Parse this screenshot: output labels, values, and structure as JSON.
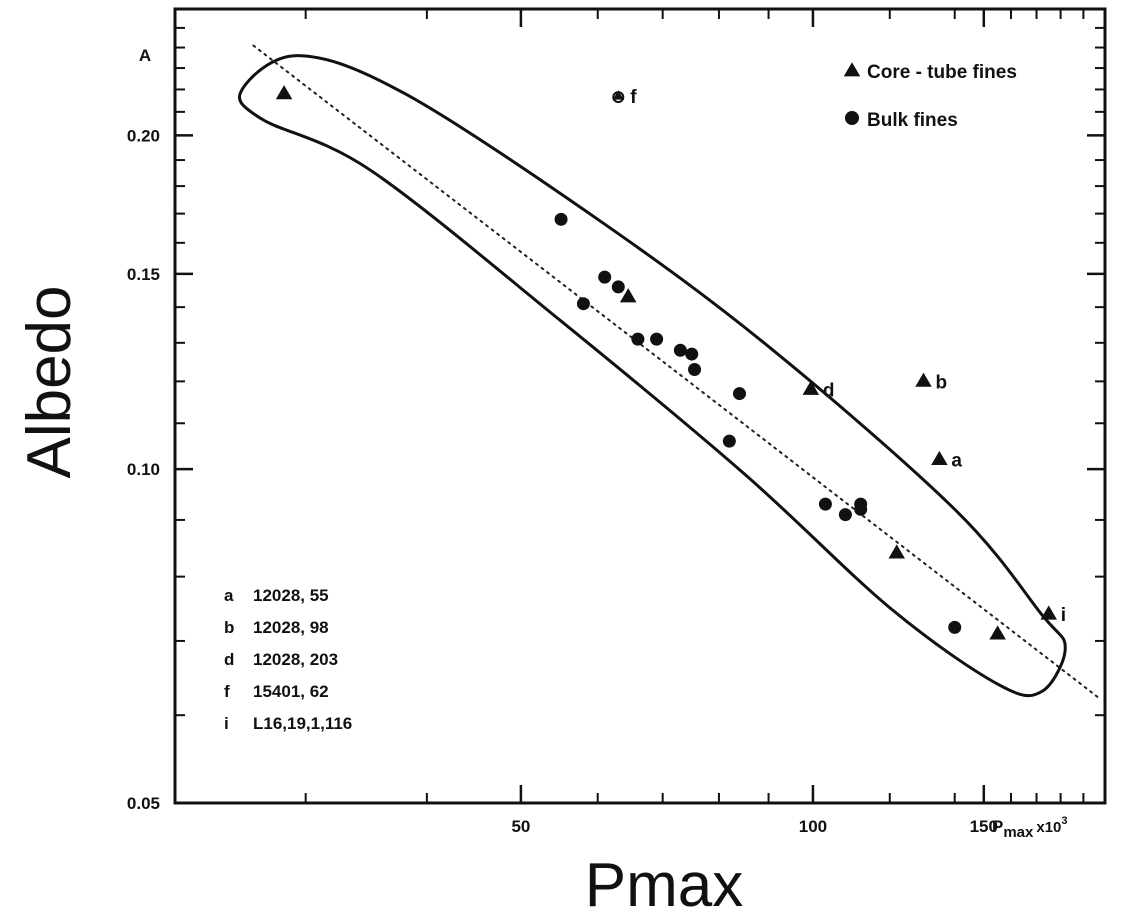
{
  "chart_data": {
    "type": "scatter",
    "title": "",
    "xlabel": "Pmax",
    "ylabel": "Albedo",
    "inner_y_axis_label": "A",
    "inner_x_axis_label_main": "P",
    "inner_x_axis_label_sub": "max",
    "inner_x_axis_label_suffix": "x10",
    "inner_x_axis_label_exp": "3",
    "x_scale": "log",
    "y_scale": "log",
    "xlim": [
      22,
      200
    ],
    "ylim": [
      0.05,
      0.26
    ],
    "x_ticks": [
      {
        "value": 50,
        "label": "50"
      },
      {
        "value": 100,
        "label": "100"
      },
      {
        "value": 150,
        "label": "150"
      }
    ],
    "y_ticks": [
      {
        "value": 0.05,
        "label": "0.05"
      },
      {
        "value": 0.1,
        "label": "0.10"
      },
      {
        "value": 0.15,
        "label": "0.15"
      },
      {
        "value": 0.2,
        "label": "0.20"
      }
    ],
    "legend": {
      "placement": "top-right",
      "entries": [
        {
          "marker": "triangle",
          "label": "Core - tube  fines"
        },
        {
          "marker": "circle",
          "label": "Bulk   fines"
        }
      ]
    },
    "series": [
      {
        "name": "Core - tube  fines",
        "marker": "triangle",
        "points": [
          {
            "x": 28.5,
            "y": 0.218
          },
          {
            "x": 64.5,
            "y": 0.143
          },
          {
            "x": 99.5,
            "y": 0.118,
            "tag": "d"
          },
          {
            "x": 122,
            "y": 0.084
          },
          {
            "x": 130,
            "y": 0.12,
            "tag": "b"
          },
          {
            "x": 135,
            "y": 0.102,
            "tag": "a"
          },
          {
            "x": 155,
            "y": 0.071
          },
          {
            "x": 175,
            "y": 0.074,
            "tag": "i"
          }
        ]
      },
      {
        "name": "Bulk   fines",
        "marker": "circle",
        "points": [
          {
            "x": 55,
            "y": 0.168
          },
          {
            "x": 58,
            "y": 0.141
          },
          {
            "x": 61,
            "y": 0.149
          },
          {
            "x": 63,
            "y": 0.146
          },
          {
            "x": 66,
            "y": 0.131
          },
          {
            "x": 69,
            "y": 0.131
          },
          {
            "x": 73,
            "y": 0.128
          },
          {
            "x": 75,
            "y": 0.127
          },
          {
            "x": 75.5,
            "y": 0.123
          },
          {
            "x": 82,
            "y": 0.106
          },
          {
            "x": 84,
            "y": 0.117
          },
          {
            "x": 103,
            "y": 0.093
          },
          {
            "x": 108,
            "y": 0.091
          },
          {
            "x": 112,
            "y": 0.092
          },
          {
            "x": 112,
            "y": 0.093
          },
          {
            "x": 140,
            "y": 0.072
          }
        ]
      },
      {
        "name": "",
        "marker": "triangle-circle",
        "points": [
          {
            "x": 63,
            "y": 0.217,
            "tag": "f"
          }
        ]
      }
    ],
    "trend_line": {
      "style": "dotted",
      "from": {
        "x": 26.5,
        "y": 0.241
      },
      "to": {
        "x": 198,
        "y": 0.062
      }
    },
    "enclosure": {
      "style": "solid",
      "description": "closed outline around points",
      "path": [
        {
          "x": 25.8,
          "y": 0.22
        },
        {
          "x": 29.5,
          "y": 0.236
        },
        {
          "x": 38,
          "y": 0.218
        },
        {
          "x": 60,
          "y": 0.168
        },
        {
          "x": 90,
          "y": 0.129
        },
        {
          "x": 140,
          "y": 0.092
        },
        {
          "x": 172,
          "y": 0.074
        },
        {
          "x": 182,
          "y": 0.069
        },
        {
          "x": 172,
          "y": 0.063
        },
        {
          "x": 155,
          "y": 0.064
        },
        {
          "x": 120,
          "y": 0.075
        },
        {
          "x": 85,
          "y": 0.099
        },
        {
          "x": 55,
          "y": 0.136
        },
        {
          "x": 35,
          "y": 0.186
        },
        {
          "x": 27,
          "y": 0.207
        },
        {
          "x": 25.8,
          "y": 0.22
        }
      ]
    },
    "sample_table": [
      {
        "key": "a",
        "value": "12028, 55"
      },
      {
        "key": "b",
        "value": "12028, 98"
      },
      {
        "key": "d",
        "value": "12028, 203"
      },
      {
        "key": "f",
        "value": "15401, 62"
      },
      {
        "key": "i",
        "value": "L16,19,1,116"
      }
    ]
  }
}
